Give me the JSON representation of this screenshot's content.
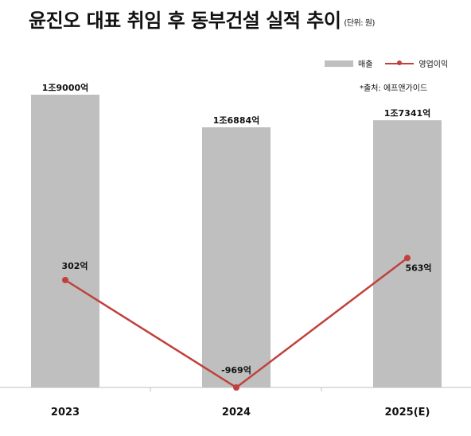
{
  "header": {
    "title": "윤진오 대표 취임 후 동부건설 실적 추이",
    "unit": "(단위: 원)"
  },
  "legend": {
    "bar": "매출",
    "line": "영업이익"
  },
  "source": "*출처: 에프앤가이드",
  "colors": {
    "bar": "#bfbfbf",
    "line": "#c0413d"
  },
  "chart_data": {
    "type": "bar",
    "title": "윤진오 대표 취임 후 동부건설 실적 추이",
    "categories": [
      "2023",
      "2024",
      "2025(E)"
    ],
    "series": [
      {
        "name": "매출",
        "type": "bar",
        "values": [
          19000,
          16884,
          17341
        ],
        "labels": [
          "1조9000억",
          "1조6884억",
          "1조7341억"
        ]
      },
      {
        "name": "영업이익",
        "type": "line",
        "values": [
          302,
          -969,
          563
        ],
        "labels": [
          "302억",
          "-969억",
          "563억"
        ]
      }
    ],
    "grid": false,
    "legend_position": "top-right"
  }
}
